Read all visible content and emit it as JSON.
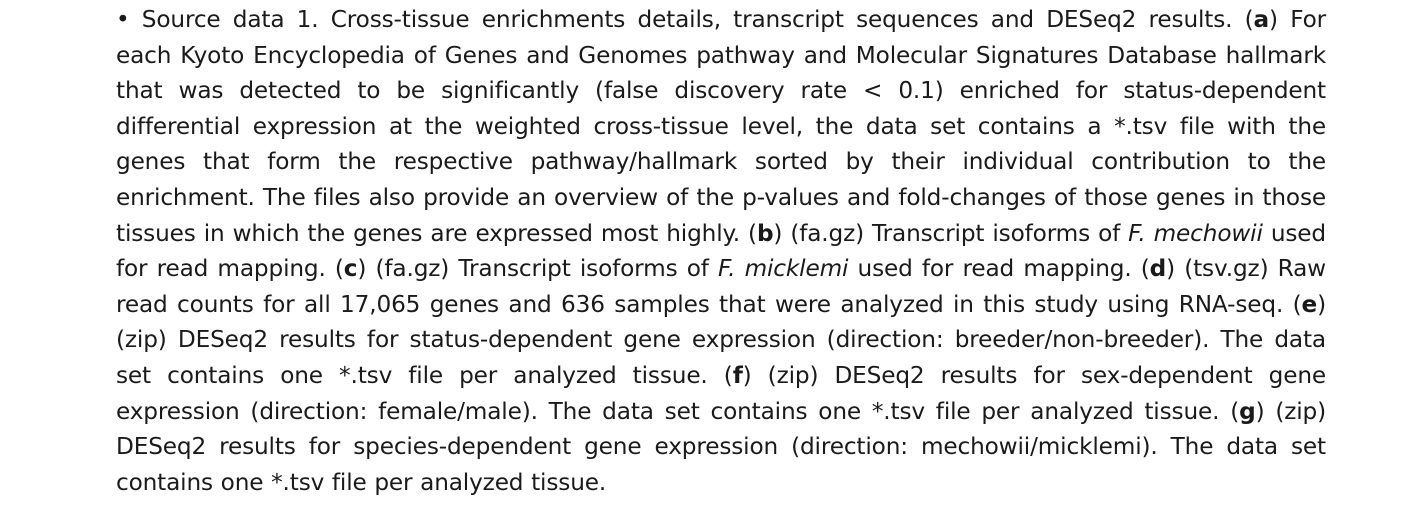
{
  "supplementary_file": {
    "bullet": "•",
    "title": "Source data 1. Cross-tissue enrichments details, transcript sequences and DESeq2 results.",
    "items": [
      {
        "letter": "a",
        "text": "For each Kyoto Encyclopedia of Genes and Genomes pathway and Molecular Signatures Database hall­mark that was detected to be significantly (false discovery rate < 0.1) enriched for status-dependent differential expression at the weighted cross-tissue level, the data set contains a *.tsv file with the genes that form the respective pathway/hallmark sorted by their individual contribution to the enrichment. The files also provide an overview of the p-values and fold-changes of those genes in those tissues in which the genes are expressed most highly."
      },
      {
        "letter": "b",
        "text_before": "(fa.gz) Transcript isoforms of",
        "species": "F. mechowii",
        "text_after": "used for read mapping."
      },
      {
        "letter": "c",
        "text_before": "(fa.gz) Transcript isoforms of",
        "species": "F. micklemi",
        "text_after": "used for read map­ping."
      },
      {
        "letter": "d",
        "text": "(tsv.gz) Raw read counts for all 17,065 genes and 636 samples that were analyzed in this study using RNA-seq."
      },
      {
        "letter": "e",
        "text": "(zip) DESeq2 results for status-dependent gene expression (direction: breeder/non-breeder). The data set contains one *.tsv file per analyzed tissue."
      },
      {
        "letter": "f",
        "text": "(zip) DESeq2 results for sex-dependent gene expression (direction: female/male). The data set contains one *.tsv file per analyzed tissue."
      },
      {
        "letter": "g",
        "text": "(zip) DESeq2 results for species-dependent gene expression (direction: mechowii/micklemi). The data set contains one *.tsv file per analyzed tissue."
      }
    ]
  }
}
